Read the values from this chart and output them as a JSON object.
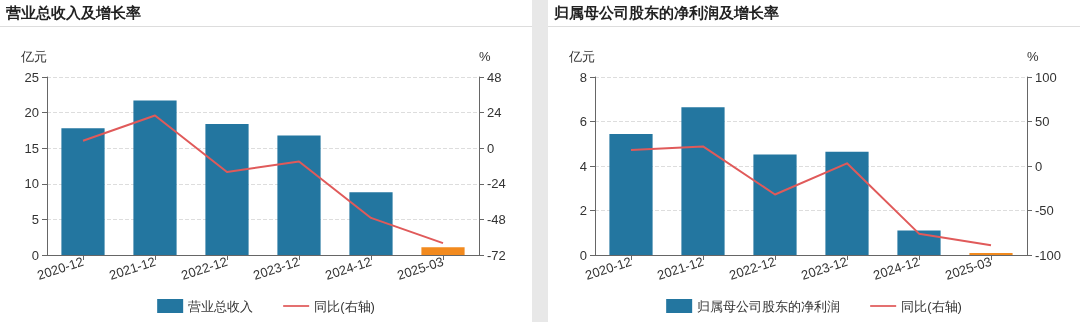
{
  "chart_data": [
    {
      "type": "bar",
      "title": "营业总收入及增长率",
      "ylabel": "亿元",
      "y2label": "%",
      "categories": [
        "2020-12",
        "2021-12",
        "2022-12",
        "2023-12",
        "2024-12",
        "2025-03"
      ],
      "series": [
        {
          "name": "营业总收入",
          "color": "#2376a0",
          "colors": [
            "#2376a0",
            "#2376a0",
            "#2376a0",
            "#2376a0",
            "#2376a0",
            "#f28a1e"
          ],
          "values": [
            17.8,
            21.7,
            18.4,
            16.8,
            8.8,
            1.1
          ]
        },
        {
          "name": "同比(右轴)",
          "type": "line",
          "axis": "y2",
          "color": "#e05a5a",
          "values": [
            5,
            22,
            -16,
            -9,
            -47,
            -64
          ]
        }
      ],
      "ylim": [
        0,
        25
      ],
      "yticks": [
        0,
        5,
        10,
        15,
        20,
        25
      ],
      "y2lim": [
        -72,
        48
      ],
      "y2ticks": [
        -72,
        -48,
        -24,
        0,
        24,
        48
      ],
      "grid": "y",
      "legend": "bottom",
      "marker": "none",
      "line_style": "solid"
    },
    {
      "type": "bar",
      "title": "归属母公司股东的净利润及增长率",
      "ylabel": "亿元",
      "y2label": "%",
      "categories": [
        "2020-12",
        "2021-12",
        "2022-12",
        "2023-12",
        "2024-12",
        "2025-03"
      ],
      "series": [
        {
          "name": "归属母公司股东的净利润",
          "color": "#2376a0",
          "colors": [
            "#2376a0",
            "#2376a0",
            "#2376a0",
            "#2376a0",
            "#2376a0",
            "#f28a1e"
          ],
          "values": [
            5.44,
            6.64,
            4.52,
            4.64,
            1.1,
            0.09
          ]
        },
        {
          "name": "同比(右轴)",
          "type": "line",
          "axis": "y2",
          "color": "#e05a5a",
          "values": [
            18,
            22,
            -32,
            3,
            -76,
            -89
          ]
        }
      ],
      "ylim": [
        0,
        8
      ],
      "yticks": [
        0,
        2,
        4,
        6,
        8
      ],
      "y2lim": [
        -100,
        100
      ],
      "y2ticks": [
        -100,
        -50,
        0,
        50,
        100
      ],
      "grid": "y",
      "legend": "bottom",
      "marker": "none",
      "line_style": "solid"
    }
  ]
}
